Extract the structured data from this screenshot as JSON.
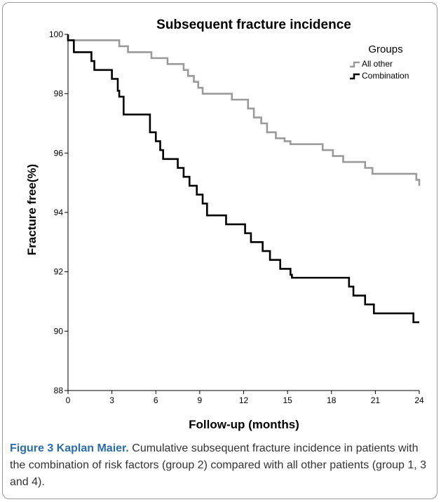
{
  "chart_data": {
    "type": "line",
    "step": true,
    "title": "Subsequent fracture incidence",
    "xlabel": "Follow-up (months)",
    "ylabel": "Fracture free(%)",
    "xlim": [
      0,
      24
    ],
    "ylim": [
      88,
      100
    ],
    "xticks": [
      0,
      3,
      6,
      9,
      12,
      15,
      18,
      21,
      24
    ],
    "yticks": [
      88,
      90,
      92,
      94,
      96,
      98,
      100
    ],
    "grid": false,
    "legend": {
      "title": "Groups",
      "placement": "top-right"
    },
    "series": [
      {
        "name": "All other",
        "color": "#9a9a9a",
        "x": [
          0,
          3.5,
          4.1,
          5.7,
          6.8,
          7.9,
          8.2,
          8.6,
          8.9,
          9.2,
          11.2,
          12.3,
          12.7,
          13.2,
          13.6,
          14.2,
          14.8,
          15.2,
          17.4,
          18.1,
          18.8,
          20.3,
          20.8,
          23.8,
          24
        ],
        "y": [
          99.8,
          99.6,
          99.4,
          99.2,
          99.0,
          98.8,
          98.6,
          98.4,
          98.2,
          98.0,
          97.8,
          97.5,
          97.2,
          97.0,
          96.7,
          96.5,
          96.4,
          96.3,
          96.1,
          95.9,
          95.7,
          95.5,
          95.3,
          95.1,
          94.9
        ]
      },
      {
        "name": "Combination",
        "color": "#000000",
        "x": [
          0,
          0.4,
          1.6,
          1.8,
          3.0,
          3.4,
          3.5,
          3.8,
          5.6,
          6.0,
          6.3,
          6.5,
          7.5,
          7.9,
          8.3,
          8.8,
          9.2,
          9.5,
          10.8,
          12.1,
          12.5,
          13.3,
          13.8,
          14.5,
          15.2,
          15.3,
          19.2,
          19.5,
          20.3,
          20.9,
          23.6,
          24
        ],
        "y": [
          99.8,
          99.4,
          99.1,
          98.8,
          98.5,
          98.1,
          97.9,
          97.3,
          96.7,
          96.4,
          96.1,
          95.8,
          95.5,
          95.2,
          94.9,
          94.6,
          94.3,
          93.9,
          93.6,
          93.3,
          93.0,
          92.7,
          92.4,
          92.1,
          91.9,
          91.8,
          91.5,
          91.2,
          90.9,
          90.6,
          90.3,
          90.3
        ]
      }
    ]
  },
  "caption": {
    "label": "Figure 3 Kaplan Maier.",
    "text": " Cumulative subsequent fracture incidence in patients with the combination of risk factors (group 2) compared with all other patients (group 1, 3 and 4)."
  }
}
